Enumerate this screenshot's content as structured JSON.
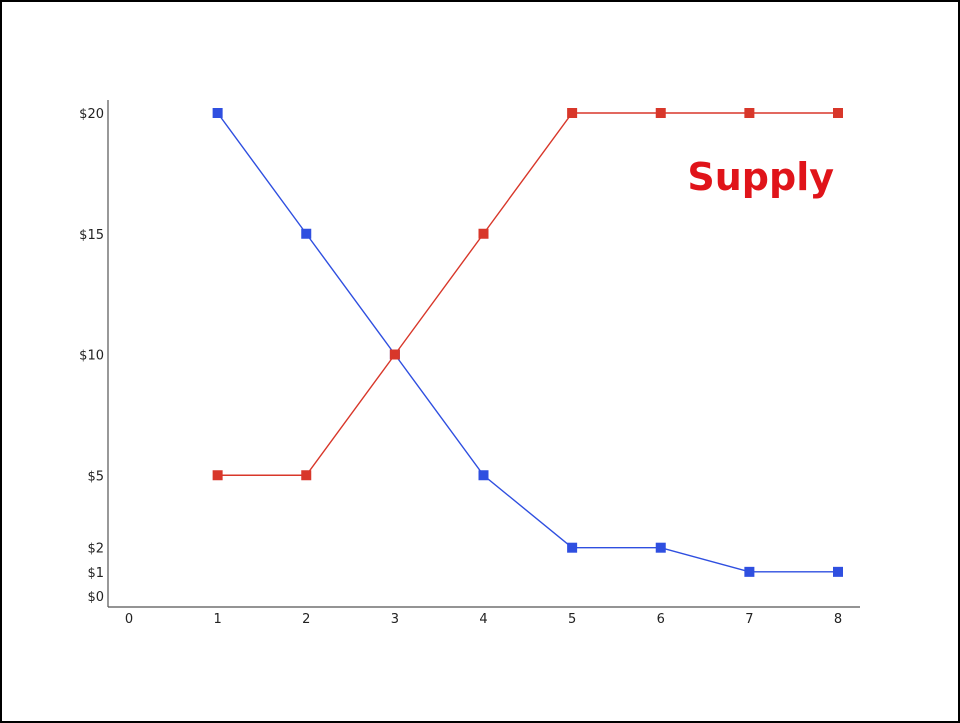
{
  "chart_data": {
    "type": "line",
    "x": [
      1,
      2,
      3,
      4,
      5,
      6,
      7,
      8
    ],
    "xticks": [
      "0",
      "1",
      "2",
      "3",
      "4",
      "5",
      "6",
      "7",
      "8"
    ],
    "xtick_values": [
      0,
      1,
      2,
      3,
      4,
      5,
      6,
      7,
      8
    ],
    "yticks": [
      "$0",
      "$1",
      "$2",
      "$5",
      "$10",
      "$15",
      "$20"
    ],
    "ytick_values": [
      0,
      1,
      2,
      5,
      10,
      15,
      20
    ],
    "xlim": [
      0,
      8
    ],
    "ylim": [
      0,
      20
    ],
    "grid": false,
    "series": [
      {
        "name": "",
        "color": "#2f4fe0",
        "values": [
          20,
          15,
          10,
          5,
          2,
          2,
          1,
          1
        ]
      },
      {
        "name": "Supply",
        "color": "#d8372a",
        "values": [
          5,
          5,
          10,
          15,
          20,
          20,
          20,
          20
        ]
      }
    ],
    "annotations": [
      {
        "text": "Supply",
        "color": "#e0141a"
      }
    ]
  }
}
